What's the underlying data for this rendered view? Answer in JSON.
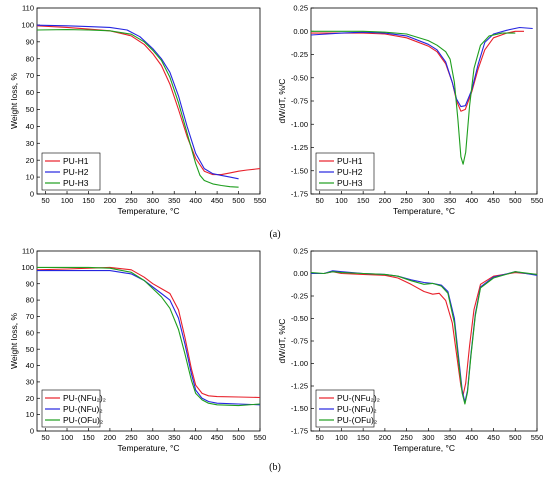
{
  "caption_a": "(a)",
  "caption_b": "(b)",
  "colors": {
    "red": "#e8202a",
    "blue": "#2525e0",
    "green": "#1e9e1e"
  },
  "chart_data": [
    {
      "id": "tl",
      "type": "line",
      "xlabel": "Temperature, °C",
      "ylabel": "Weight loss, %",
      "xlim": [
        30,
        550
      ],
      "ylim": [
        0,
        110
      ],
      "xticks": [
        50,
        100,
        150,
        200,
        250,
        300,
        350,
        400,
        450,
        500,
        550
      ],
      "yticks": [
        0,
        10,
        20,
        30,
        40,
        50,
        60,
        70,
        80,
        90,
        100,
        110
      ],
      "legend_position": "bottom-left",
      "series": [
        {
          "name": "PU-H1",
          "color": "#e8202a",
          "points": [
            [
              30,
              99.5
            ],
            [
              100,
              98.5
            ],
            [
              150,
              97.5
            ],
            [
              200,
              96.5
            ],
            [
              250,
              93.5
            ],
            [
              280,
              88.5
            ],
            [
              300,
              83
            ],
            [
              320,
              76
            ],
            [
              340,
              65
            ],
            [
              360,
              50
            ],
            [
              380,
              34
            ],
            [
              400,
              21
            ],
            [
              420,
              13.5
            ],
            [
              440,
              11.5
            ],
            [
              460,
              11.5
            ],
            [
              480,
              12.5
            ],
            [
              500,
              13.5
            ],
            [
              520,
              14.2
            ],
            [
              550,
              15
            ]
          ]
        },
        {
          "name": "PU-H2",
          "color": "#2525e0",
          "points": [
            [
              30,
              99.8
            ],
            [
              100,
              99.5
            ],
            [
              150,
              99
            ],
            [
              200,
              98.5
            ],
            [
              240,
              97
            ],
            [
              270,
              93
            ],
            [
              300,
              86
            ],
            [
              320,
              80
            ],
            [
              340,
              72
            ],
            [
              360,
              58
            ],
            [
              380,
              40
            ],
            [
              400,
              24
            ],
            [
              420,
              15
            ],
            [
              440,
              12
            ],
            [
              460,
              11
            ],
            [
              480,
              10
            ],
            [
              500,
              9
            ]
          ]
        },
        {
          "name": "PU-H3",
          "color": "#1e9e1e",
          "points": [
            [
              30,
              97
            ],
            [
              100,
              97.2
            ],
            [
              150,
              97
            ],
            [
              200,
              96.5
            ],
            [
              250,
              94.5
            ],
            [
              280,
              90
            ],
            [
              300,
              85
            ],
            [
              320,
              79
            ],
            [
              340,
              69
            ],
            [
              360,
              54
            ],
            [
              380,
              36
            ],
            [
              400,
              18
            ],
            [
              410,
              11
            ],
            [
              420,
              8
            ],
            [
              440,
              6
            ],
            [
              460,
              5
            ],
            [
              480,
              4.3
            ],
            [
              500,
              4
            ]
          ]
        }
      ]
    },
    {
      "id": "tr",
      "type": "line",
      "xlabel": "Temperature, °C",
      "ylabel": "dW/dT, %/C",
      "xlim": [
        30,
        550
      ],
      "ylim": [
        -1.75,
        0.25
      ],
      "xticks": [
        50,
        100,
        150,
        200,
        250,
        300,
        350,
        400,
        450,
        500,
        550
      ],
      "yticks": [
        0.25,
        0,
        -0.25,
        -0.5,
        -0.75,
        -1,
        -1.25,
        -1.5,
        -1.75
      ],
      "yticklabels": [
        "0.25",
        "0.00",
        "-0.25",
        "-0.50",
        "-0.75",
        "-1.00",
        "-1.25",
        "-1.50",
        "-1.75"
      ],
      "legend_position": "bottom-left",
      "series": [
        {
          "name": "PU-H1",
          "color": "#e8202a",
          "points": [
            [
              30,
              -0.02
            ],
            [
              100,
              -0.02
            ],
            [
              150,
              -0.02
            ],
            [
              200,
              -0.03
            ],
            [
              250,
              -0.07
            ],
            [
              300,
              -0.16
            ],
            [
              320,
              -0.22
            ],
            [
              340,
              -0.35
            ],
            [
              355,
              -0.55
            ],
            [
              365,
              -0.75
            ],
            [
              375,
              -0.86
            ],
            [
              385,
              -0.84
            ],
            [
              400,
              -0.65
            ],
            [
              415,
              -0.4
            ],
            [
              430,
              -0.2
            ],
            [
              450,
              -0.07
            ],
            [
              480,
              -0.02
            ],
            [
              500,
              0.0
            ],
            [
              520,
              0.0
            ]
          ]
        },
        {
          "name": "PU-H2",
          "color": "#2525e0",
          "points": [
            [
              30,
              -0.04
            ],
            [
              100,
              -0.02
            ],
            [
              150,
              -0.01
            ],
            [
              200,
              -0.02
            ],
            [
              250,
              -0.05
            ],
            [
              300,
              -0.14
            ],
            [
              320,
              -0.2
            ],
            [
              340,
              -0.33
            ],
            [
              355,
              -0.55
            ],
            [
              365,
              -0.73
            ],
            [
              375,
              -0.81
            ],
            [
              385,
              -0.8
            ],
            [
              400,
              -0.63
            ],
            [
              415,
              -0.35
            ],
            [
              430,
              -0.12
            ],
            [
              450,
              -0.03
            ],
            [
              480,
              0.01
            ],
            [
              510,
              0.04
            ],
            [
              540,
              0.03
            ]
          ]
        },
        {
          "name": "PU-H3",
          "color": "#1e9e1e",
          "points": [
            [
              30,
              0.0
            ],
            [
              100,
              0.0
            ],
            [
              150,
              0.0
            ],
            [
              200,
              -0.01
            ],
            [
              250,
              -0.03
            ],
            [
              300,
              -0.1
            ],
            [
              320,
              -0.15
            ],
            [
              340,
              -0.22
            ],
            [
              350,
              -0.3
            ],
            [
              360,
              -0.55
            ],
            [
              368,
              -0.95
            ],
            [
              375,
              -1.35
            ],
            [
              380,
              -1.43
            ],
            [
              386,
              -1.3
            ],
            [
              395,
              -0.8
            ],
            [
              405,
              -0.4
            ],
            [
              420,
              -0.15
            ],
            [
              440,
              -0.05
            ],
            [
              470,
              -0.02
            ],
            [
              500,
              -0.02
            ]
          ]
        }
      ]
    },
    {
      "id": "bl",
      "type": "line",
      "xlabel": "Temperature, °C",
      "ylabel": "Weight loss, %",
      "xlim": [
        30,
        550
      ],
      "ylim": [
        0,
        110
      ],
      "xticks": [
        50,
        100,
        150,
        200,
        250,
        300,
        350,
        400,
        450,
        500,
        550
      ],
      "yticks": [
        0,
        10,
        20,
        30,
        40,
        50,
        60,
        70,
        80,
        90,
        100,
        110
      ],
      "legend_position": "bottom-left",
      "series": [
        {
          "name": "PU-(NFu₂)₂",
          "color": "#e8202a",
          "points": [
            [
              30,
              98.5
            ],
            [
              100,
              99
            ],
            [
              150,
              99.5
            ],
            [
              200,
              100
            ],
            [
              250,
              98.5
            ],
            [
              280,
              94
            ],
            [
              300,
              90
            ],
            [
              320,
              87
            ],
            [
              340,
              84
            ],
            [
              360,
              74
            ],
            [
              375,
              57
            ],
            [
              390,
              38
            ],
            [
              400,
              28
            ],
            [
              415,
              23
            ],
            [
              430,
              21.5
            ],
            [
              450,
              21
            ],
            [
              500,
              20.8
            ],
            [
              550,
              20.5
            ]
          ]
        },
        {
          "name": "PU-(NFu)₂",
          "color": "#2525e0",
          "points": [
            [
              30,
              98
            ],
            [
              100,
              98
            ],
            [
              150,
              98
            ],
            [
              200,
              98
            ],
            [
              250,
              96
            ],
            [
              280,
              92
            ],
            [
              300,
              88
            ],
            [
              320,
              84
            ],
            [
              340,
              80
            ],
            [
              360,
              69
            ],
            [
              375,
              53
            ],
            [
              390,
              35
            ],
            [
              400,
              25
            ],
            [
              415,
              20
            ],
            [
              430,
              18
            ],
            [
              450,
              17
            ],
            [
              500,
              16.5
            ],
            [
              550,
              16
            ]
          ]
        },
        {
          "name": "PU-(OFu)₂",
          "color": "#1e9e1e",
          "points": [
            [
              30,
              100
            ],
            [
              100,
              100
            ],
            [
              150,
              100
            ],
            [
              200,
              99.5
            ],
            [
              250,
              97
            ],
            [
              280,
              92
            ],
            [
              300,
              87
            ],
            [
              320,
              82
            ],
            [
              340,
              75
            ],
            [
              360,
              62
            ],
            [
              375,
              47
            ],
            [
              390,
              31
            ],
            [
              400,
              23
            ],
            [
              415,
              19
            ],
            [
              430,
              17
            ],
            [
              450,
              16
            ],
            [
              500,
              15.5
            ],
            [
              550,
              16.5
            ]
          ]
        }
      ]
    },
    {
      "id": "br",
      "type": "line",
      "xlabel": "Temperature, °C",
      "ylabel": "dW/dT, %/C",
      "xlim": [
        30,
        550
      ],
      "ylim": [
        -1.75,
        0.25
      ],
      "xticks": [
        50,
        100,
        150,
        200,
        250,
        300,
        350,
        400,
        450,
        500,
        550
      ],
      "yticks": [
        0.25,
        0,
        -0.25,
        -0.5,
        -0.75,
        -1,
        -1.25,
        -1.5,
        -1.75
      ],
      "yticklabels": [
        "0.25",
        "0.00",
        "-0.25",
        "-0.50",
        "-0.75",
        "-1.00",
        "-1.25",
        "-1.50",
        "-1.75"
      ],
      "legend_position": "bottom-left",
      "series": [
        {
          "name": "PU-(NFu₂)₂",
          "color": "#e8202a",
          "points": [
            [
              30,
              0.0
            ],
            [
              60,
              0.0
            ],
            [
              80,
              0.02
            ],
            [
              100,
              0.0
            ],
            [
              150,
              -0.01
            ],
            [
              200,
              -0.02
            ],
            [
              230,
              -0.05
            ],
            [
              260,
              -0.12
            ],
            [
              290,
              -0.2
            ],
            [
              310,
              -0.23
            ],
            [
              325,
              -0.22
            ],
            [
              340,
              -0.3
            ],
            [
              355,
              -0.55
            ],
            [
              365,
              -0.9
            ],
            [
              375,
              -1.25
            ],
            [
              380,
              -1.35
            ],
            [
              386,
              -1.22
            ],
            [
              395,
              -0.8
            ],
            [
              405,
              -0.4
            ],
            [
              420,
              -0.12
            ],
            [
              450,
              -0.03
            ],
            [
              500,
              0.01
            ],
            [
              550,
              -0.01
            ]
          ]
        },
        {
          "name": "PU-(NFu)₂",
          "color": "#2525e0",
          "points": [
            [
              30,
              0.0
            ],
            [
              60,
              0.0
            ],
            [
              80,
              0.03
            ],
            [
              100,
              0.02
            ],
            [
              150,
              0.0
            ],
            [
              200,
              -0.01
            ],
            [
              230,
              -0.03
            ],
            [
              260,
              -0.07
            ],
            [
              290,
              -0.1
            ],
            [
              310,
              -0.11
            ],
            [
              330,
              -0.13
            ],
            [
              345,
              -0.2
            ],
            [
              360,
              -0.5
            ],
            [
              370,
              -0.95
            ],
            [
              378,
              -1.3
            ],
            [
              384,
              -1.43
            ],
            [
              390,
              -1.3
            ],
            [
              398,
              -0.9
            ],
            [
              408,
              -0.45
            ],
            [
              420,
              -0.15
            ],
            [
              450,
              -0.04
            ],
            [
              500,
              0.02
            ],
            [
              550,
              -0.02
            ]
          ]
        },
        {
          "name": "PU-(OFu)₂",
          "color": "#1e9e1e",
          "points": [
            [
              30,
              0.01
            ],
            [
              60,
              0.0
            ],
            [
              80,
              0.02
            ],
            [
              100,
              0.01
            ],
            [
              150,
              0.0
            ],
            [
              200,
              -0.01
            ],
            [
              230,
              -0.03
            ],
            [
              260,
              -0.08
            ],
            [
              290,
              -0.12
            ],
            [
              310,
              -0.11
            ],
            [
              330,
              -0.14
            ],
            [
              345,
              -0.22
            ],
            [
              360,
              -0.55
            ],
            [
              370,
              -1.0
            ],
            [
              378,
              -1.33
            ],
            [
              384,
              -1.45
            ],
            [
              390,
              -1.32
            ],
            [
              398,
              -0.92
            ],
            [
              408,
              -0.47
            ],
            [
              420,
              -0.16
            ],
            [
              450,
              -0.05
            ],
            [
              500,
              0.02
            ],
            [
              550,
              -0.01
            ]
          ]
        }
      ]
    }
  ]
}
